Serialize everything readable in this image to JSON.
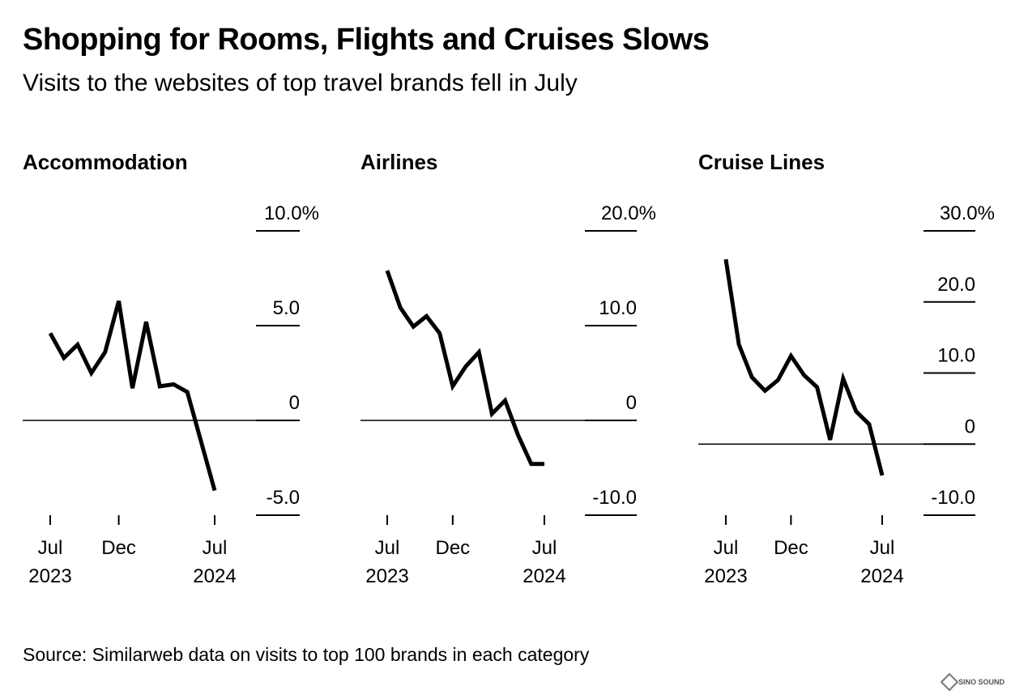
{
  "title": "Shopping for Rooms, Flights and Cruises Slows",
  "subtitle": "Visits to the websites of top travel brands fell in July",
  "source": "Source: Similarweb data on visits to top 100 brands in each category",
  "watermark": {
    "text": "SINO SOUND"
  },
  "chart_data": [
    {
      "type": "line",
      "title": "Accommodation",
      "x": [
        "2023-07",
        "2023-08",
        "2023-09",
        "2023-10",
        "2023-11",
        "2023-12",
        "2024-01",
        "2024-02",
        "2024-03",
        "2024-04",
        "2024-05",
        "2024-06",
        "2024-07"
      ],
      "values": [
        4.6,
        3.3,
        4.0,
        2.5,
        3.6,
        6.3,
        1.7,
        5.2,
        1.8,
        1.9,
        1.5,
        -1.1,
        -3.7
      ],
      "ylim": [
        -5,
        10
      ],
      "y_ticks": [
        -5,
        0,
        5,
        10
      ],
      "y_tick_labels": [
        "-5.0",
        "0",
        "5.0",
        "10.0%"
      ],
      "x_ticks": [
        {
          "x": "2023-07",
          "label": "Jul",
          "sublabel": "2023"
        },
        {
          "x": "2023-12",
          "label": "Dec",
          "sublabel": ""
        },
        {
          "x": "2024-07",
          "label": "Jul",
          "sublabel": "2024"
        }
      ]
    },
    {
      "type": "line",
      "title": "Airlines",
      "x": [
        "2023-07",
        "2023-08",
        "2023-09",
        "2023-10",
        "2023-11",
        "2023-12",
        "2024-01",
        "2024-02",
        "2024-03",
        "2024-04",
        "2024-05",
        "2024-06",
        "2024-07"
      ],
      "values": [
        15.8,
        11.9,
        9.9,
        11.0,
        9.2,
        3.6,
        5.7,
        7.2,
        0.7,
        2.1,
        -1.6,
        -4.6,
        -4.6
      ],
      "ylim": [
        -10,
        20
      ],
      "y_ticks": [
        -10,
        0,
        10,
        20
      ],
      "y_tick_labels": [
        "-10.0",
        "0",
        "10.0",
        "20.0%"
      ],
      "x_ticks": [
        {
          "x": "2023-07",
          "label": "Jul",
          "sublabel": "2023"
        },
        {
          "x": "2023-12",
          "label": "Dec",
          "sublabel": ""
        },
        {
          "x": "2024-07",
          "label": "Jul",
          "sublabel": "2024"
        }
      ]
    },
    {
      "type": "line",
      "title": "Cruise Lines",
      "x": [
        "2023-07",
        "2023-08",
        "2023-09",
        "2023-10",
        "2023-11",
        "2023-12",
        "2024-01",
        "2024-02",
        "2024-03",
        "2024-04",
        "2024-05",
        "2024-06",
        "2024-07"
      ],
      "values": [
        26.0,
        14.0,
        9.4,
        7.5,
        9.0,
        12.4,
        9.7,
        8.0,
        0.6,
        9.2,
        4.6,
        2.8,
        -4.4
      ],
      "ylim": [
        -10,
        30
      ],
      "y_ticks": [
        -10,
        0,
        10,
        20,
        30
      ],
      "y_tick_labels": [
        "-10.0",
        "0",
        "10.0",
        "20.0",
        "30.0%"
      ],
      "x_ticks": [
        {
          "x": "2023-07",
          "label": "Jul",
          "sublabel": "2023"
        },
        {
          "x": "2023-12",
          "label": "Dec",
          "sublabel": ""
        },
        {
          "x": "2024-07",
          "label": "Jul",
          "sublabel": "2024"
        }
      ]
    }
  ],
  "colors": {
    "line": "#000000",
    "zero_line": "#000000",
    "gridline": "#000000"
  }
}
